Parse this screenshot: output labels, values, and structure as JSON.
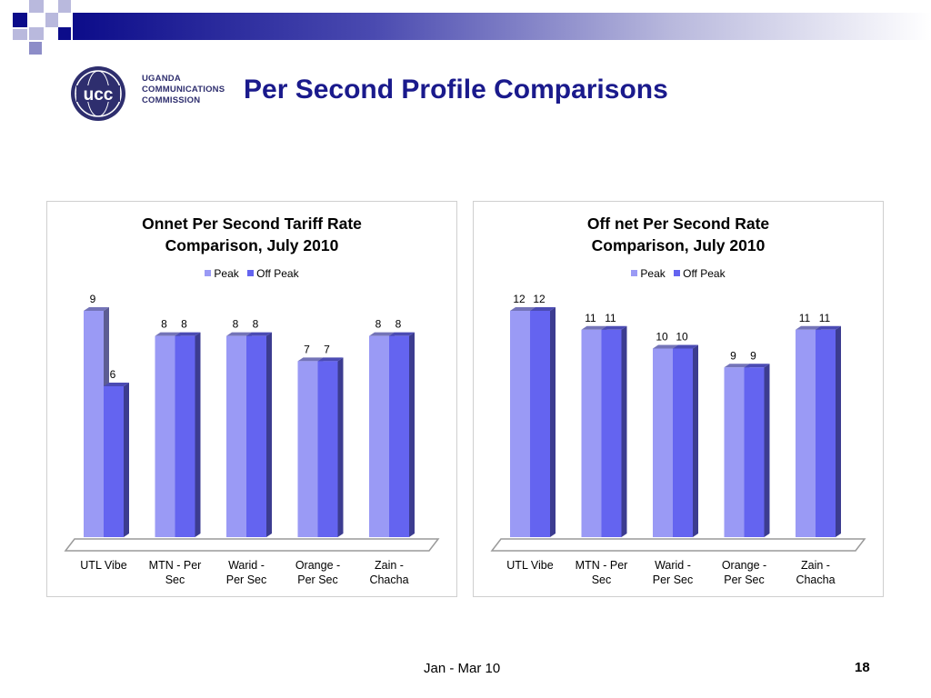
{
  "slide": {
    "title": "Per Second Profile Comparisons",
    "footer_date": "Jan - Mar 10",
    "page_number": "18"
  },
  "logo": {
    "mark": "ucc",
    "line1": "UGANDA",
    "line2": "COMMUNICATIONS",
    "line3": "COMMISSION"
  },
  "colors": {
    "peak": "#9a9af5",
    "offpeak": "#6464f0",
    "title": "#1a1a8c"
  },
  "chart_data": [
    {
      "type": "bar",
      "title_line1": "Onnet Per Second Tariff Rate",
      "title_line2": "Comparison, July 2010",
      "legend": [
        "Peak",
        "Off Peak"
      ],
      "categories": [
        [
          "UTL Vibe"
        ],
        [
          "MTN - Per",
          "Sec"
        ],
        [
          "Warid -",
          "Per Sec"
        ],
        [
          "Orange -",
          "Per Sec"
        ],
        [
          "Zain -",
          "Chacha"
        ]
      ],
      "series": [
        {
          "name": "Peak",
          "values": [
            9,
            8,
            8,
            7,
            8
          ]
        },
        {
          "name": "Off Peak",
          "values": [
            6,
            8,
            8,
            7,
            8
          ]
        }
      ],
      "ylim": [
        0,
        9
      ]
    },
    {
      "type": "bar",
      "title_line1": "Off net Per Second Rate",
      "title_line2": "Comparison, July 2010",
      "legend": [
        "Peak",
        "Off Peak"
      ],
      "categories": [
        [
          "UTL Vibe"
        ],
        [
          "MTN - Per",
          "Sec"
        ],
        [
          "Warid -",
          "Per Sec"
        ],
        [
          "Orange -",
          "Per Sec"
        ],
        [
          "Zain -",
          "Chacha"
        ]
      ],
      "series": [
        {
          "name": "Peak",
          "values": [
            12,
            11,
            10,
            9,
            11
          ]
        },
        {
          "name": "Off Peak",
          "values": [
            12,
            11,
            10,
            9,
            11
          ]
        }
      ],
      "ylim": [
        0,
        12
      ]
    }
  ]
}
